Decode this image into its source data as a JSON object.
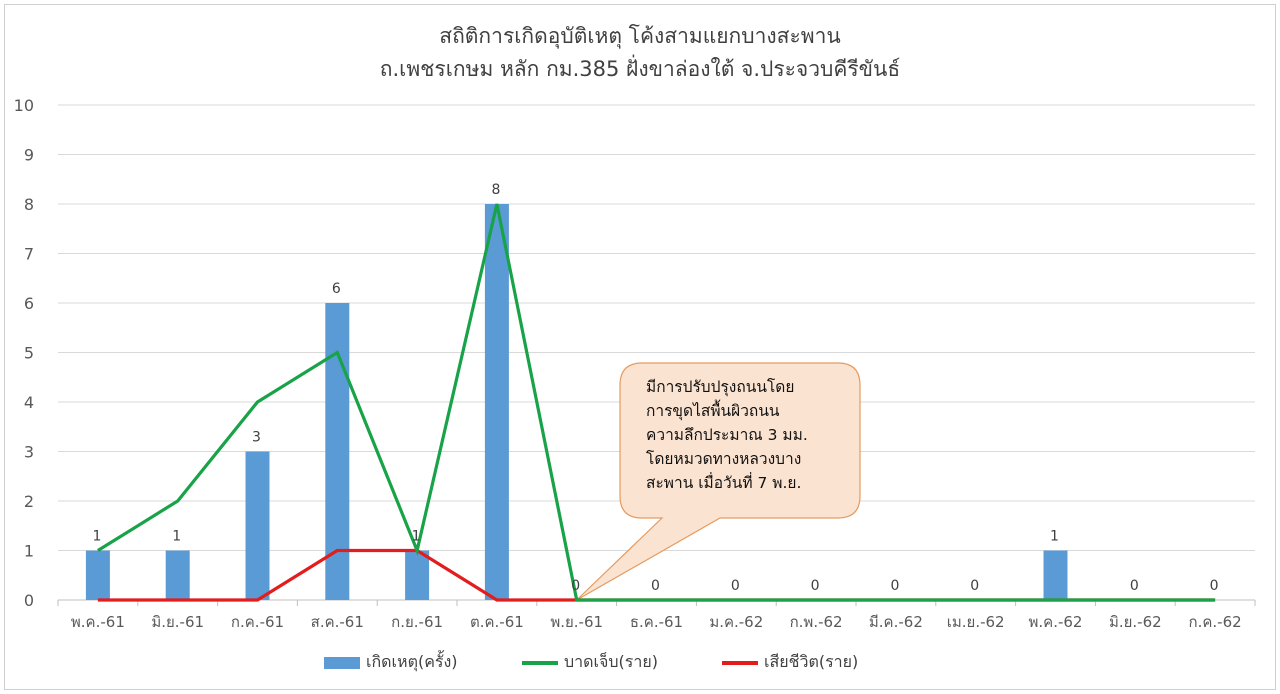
{
  "title": {
    "line1": "สถิติการเกิดอุบัติเหตุ โค้งสามแยกบางสะพาน",
    "line2": "ถ.เพชรเกษม หลัก กม.385 ฝั่งขาล่องใต้ จ.ประจวบคีรีขันธ์"
  },
  "colors": {
    "bars": "#5b9bd5",
    "injured": "#18a348",
    "deaths": "#e31c1c",
    "grid": "#d9d9d9",
    "axis_text": "#595959",
    "note_fill": "#fbe3d1",
    "note_border": "#e59b60"
  },
  "annotation": {
    "text": "มีการปรับปรุงถนนโดย\nการขุดไสพื้นผิวถนน\nความลึกประมาณ  3 มม.\nโดยหมวดทางหลวงบาง\nสะพาน เมื่อวันที่ 7 พ.ย."
  },
  "chart_data": {
    "type": "bar",
    "categories": [
      "พ.ค.-61",
      "มิ.ย.-61",
      "ก.ค.-61",
      "ส.ค.-61",
      "ก.ย.-61",
      "ต.ค.-61",
      "พ.ย.-61",
      "ธ.ค.-61",
      "ม.ค.-62",
      "ก.พ.-62",
      "มี.ค.-62",
      "เม.ย.-62",
      "พ.ค.-62",
      "มิ.ย.-62",
      "ก.ค.-62"
    ],
    "ylim": [
      0,
      10
    ],
    "yticks": [
      0,
      1,
      2,
      3,
      4,
      5,
      6,
      7,
      8,
      9,
      10
    ],
    "grid": true,
    "legend_position": "bottom",
    "series": [
      {
        "name": "เกิดเหตุ(ครั้ง)",
        "kind": "bar",
        "values": [
          1,
          1,
          3,
          6,
          1,
          8,
          0,
          0,
          0,
          0,
          0,
          0,
          1,
          0,
          0
        ],
        "data_labels": [
          "1",
          "1",
          "3",
          "6",
          "1",
          "8",
          "0",
          "0",
          "0",
          "0",
          "0",
          "0",
          "1",
          "0",
          "0"
        ]
      },
      {
        "name": "บาดเจ็บ(ราย)",
        "kind": "line",
        "values": [
          1,
          2,
          4,
          5,
          1,
          8,
          0,
          0,
          0,
          0,
          0,
          0,
          0,
          0,
          0
        ]
      },
      {
        "name": "เสียชีวิต(ราย)",
        "kind": "line",
        "values": [
          0,
          0,
          0,
          1,
          1,
          0,
          0,
          0,
          0,
          0,
          0,
          0,
          0,
          0,
          0
        ]
      }
    ]
  }
}
